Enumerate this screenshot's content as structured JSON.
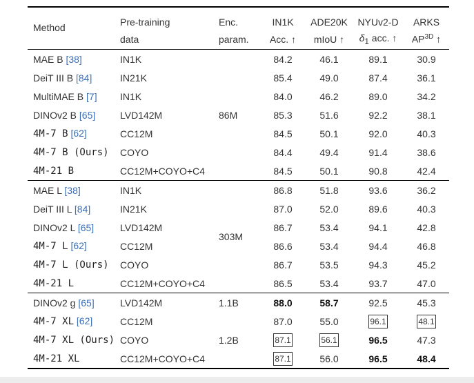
{
  "header": {
    "method": "Method",
    "pretraining_line1": "Pre-training",
    "pretraining_line2": "data",
    "enc_line1": "Enc.",
    "enc_line2": "param.",
    "in1k_line1": "IN1K",
    "in1k_line2": "Acc. ↑",
    "ade_line1": "ADE20K",
    "ade_line2": "mIoU ↑",
    "nyu_line1": "NYUv2-D",
    "nyu_delta": "δ",
    "nyu_sub": "1",
    "nyu_line2": " acc. ↑",
    "arks_line1": "ARKS",
    "arks_ap": "AP",
    "arks_sup": "3D",
    "arks_arrow": " ↑"
  },
  "groups": [
    {
      "enc": "86M",
      "rows": [
        {
          "name": "MAE B",
          "cite": "[38]",
          "mono": false,
          "data": "IN1K",
          "in1k": "84.2",
          "ade": "46.1",
          "nyu": "89.1",
          "arks": "30.9"
        },
        {
          "name": "DeiT III B",
          "cite": "[84]",
          "mono": false,
          "data": "IN21K",
          "in1k": "85.4",
          "ade": "49.0",
          "nyu": "87.4",
          "arks": "36.1"
        },
        {
          "name": "MultiMAE B",
          "cite": "[7]",
          "mono": false,
          "data": "IN1K",
          "in1k": "84.0",
          "ade": "46.2",
          "nyu": "89.0",
          "arks": "34.2"
        },
        {
          "name": "DINOv2 B",
          "cite": "[65]",
          "mono": false,
          "data": "LVD142M",
          "in1k": "85.3",
          "ade": "51.6",
          "nyu": "92.2",
          "arks": "38.1"
        },
        {
          "name": "4M-7 B",
          "cite": "[62]",
          "mono": true,
          "data": "CC12M",
          "in1k": "84.5",
          "ade": "50.1",
          "nyu": "92.0",
          "arks": "40.3"
        },
        {
          "name": "4M-7 B (Ours)",
          "cite": "",
          "mono": true,
          "data": "COYO",
          "in1k": "84.4",
          "ade": "49.4",
          "nyu": "91.4",
          "arks": "38.6"
        },
        {
          "name": "4M-21 B",
          "cite": "",
          "mono": true,
          "data": "CC12M+COYO+C4",
          "in1k": "84.5",
          "ade": "50.1",
          "nyu": "90.8",
          "arks": "42.4"
        }
      ]
    },
    {
      "enc": "303M",
      "rows": [
        {
          "name": "MAE L",
          "cite": "[38]",
          "mono": false,
          "data": "IN1K",
          "in1k": "86.8",
          "ade": "51.8",
          "nyu": "93.6",
          "arks": "36.2"
        },
        {
          "name": "DeiT III L",
          "cite": "[84]",
          "mono": false,
          "data": "IN21K",
          "in1k": "87.0",
          "ade": "52.0",
          "nyu": "89.6",
          "arks": "40.3"
        },
        {
          "name": "DINOv2 L",
          "cite": "[65]",
          "mono": false,
          "data": "LVD142M",
          "in1k": "86.7",
          "ade": "53.4",
          "nyu": "94.1",
          "arks": "42.8"
        },
        {
          "name": "4M-7 L",
          "cite": "[62]",
          "mono": true,
          "data": "CC12M",
          "in1k": "86.6",
          "ade": "53.4",
          "nyu": "94.4",
          "arks": "46.8"
        },
        {
          "name": "4M-7 L (Ours)",
          "cite": "",
          "mono": true,
          "data": "COYO",
          "in1k": "86.7",
          "ade": "53.5",
          "nyu": "94.3",
          "arks": "45.2"
        },
        {
          "name": "4M-21 L",
          "cite": "",
          "mono": true,
          "data": "CC12M+COYO+C4",
          "in1k": "86.5",
          "ade": "53.4",
          "nyu": "93.7",
          "arks": "47.0"
        }
      ]
    },
    {
      "rows": [
        {
          "name": "DINOv2 g",
          "cite": "[65]",
          "mono": false,
          "data": "LVD142M",
          "enc": "1.1B",
          "in1k": "88.0",
          "in1k_style": "bold",
          "ade": "58.7",
          "ade_style": "bold",
          "nyu": "92.5",
          "arks": "45.3"
        },
        {
          "name": "4M-7 XL",
          "cite": "[62]",
          "mono": true,
          "data": "CC12M",
          "in1k": "87.0",
          "ade": "55.0",
          "nyu": "96.1",
          "nyu_style": "boxed",
          "arks": "48.1",
          "arks_style": "boxed"
        },
        {
          "name": "4M-7 XL (Ours)",
          "cite": "",
          "mono": true,
          "data": "COYO",
          "enc": "1.2B",
          "in1k": "87.1",
          "in1k_style": "boxed",
          "ade": "56.1",
          "ade_style": "boxed",
          "nyu": "96.5",
          "nyu_style": "bold",
          "arks": "47.3"
        },
        {
          "name": "4M-21 XL",
          "cite": "",
          "mono": true,
          "data": "CC12M+COYO+C4",
          "in1k": "87.1",
          "in1k_style": "boxed",
          "ade": "56.0",
          "nyu": "96.5",
          "nyu_style": "bold",
          "arks": "48.4",
          "arks_style": "bold"
        }
      ]
    }
  ]
}
